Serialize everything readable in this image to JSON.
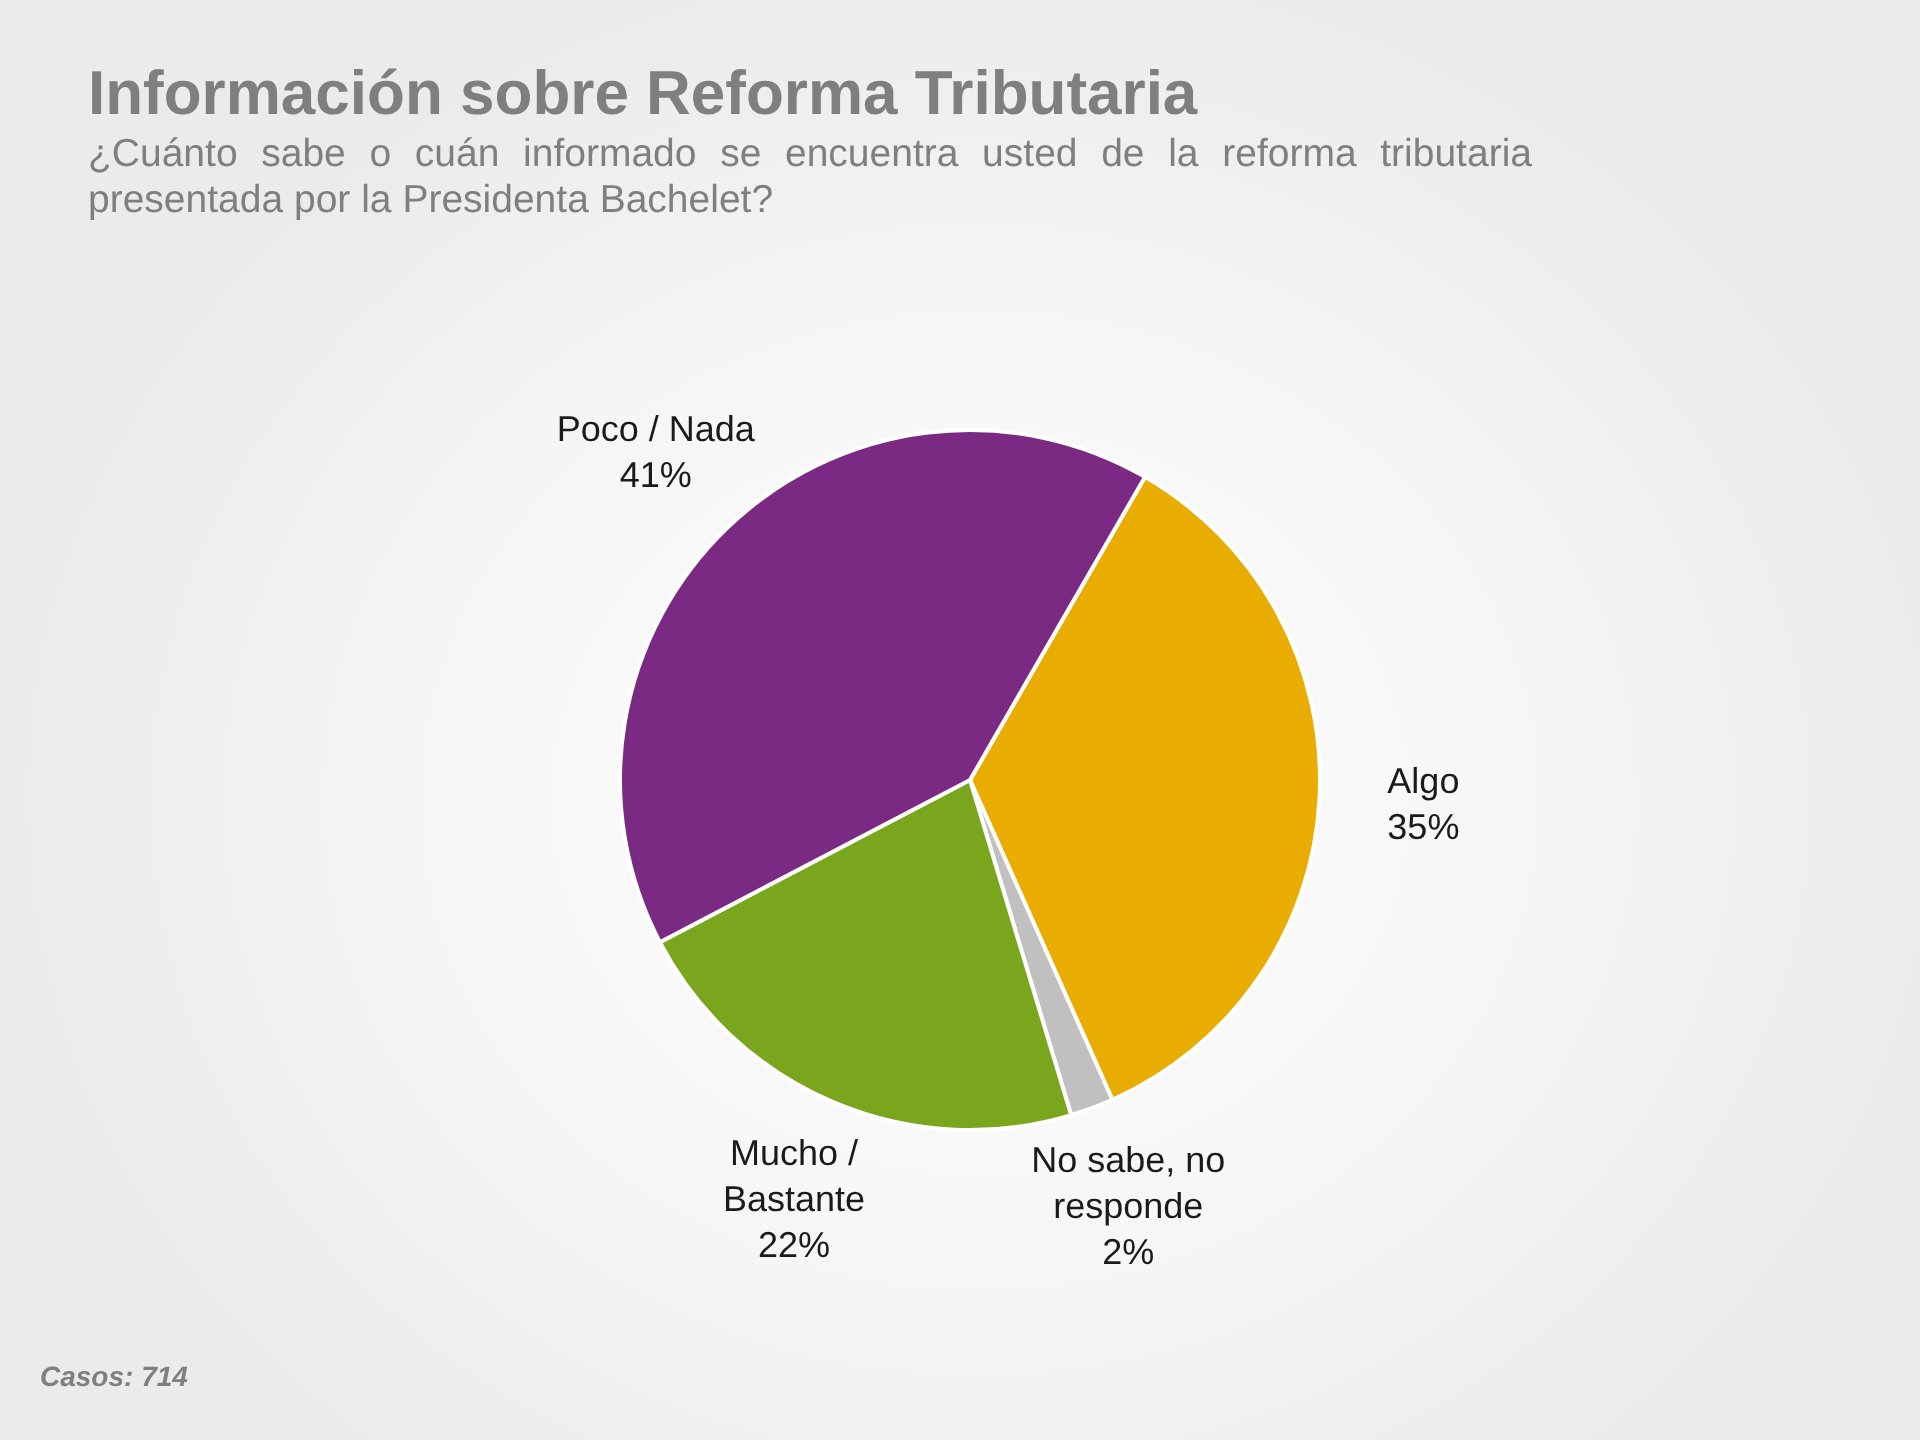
{
  "chart_data": {
    "type": "pie",
    "title": "Información sobre Reforma Tributaria",
    "subtitle": "¿Cuánto sabe o cuán informado se encuentra usted de la reforma tributaria presentada por la Presidenta Bachelet?",
    "categories": [
      "Algo",
      "No sabe, no responde",
      "Mucho / Bastante",
      "Poco / Nada"
    ],
    "values": [
      35,
      2,
      22,
      41
    ],
    "value_labels": [
      "35%",
      "2%",
      "22%",
      "41%"
    ],
    "colors": [
      "#e8ad00",
      "#c0c0c0",
      "#7aa61e",
      "#7b2a84"
    ],
    "annotations": [
      "Casos: 714"
    ]
  }
}
